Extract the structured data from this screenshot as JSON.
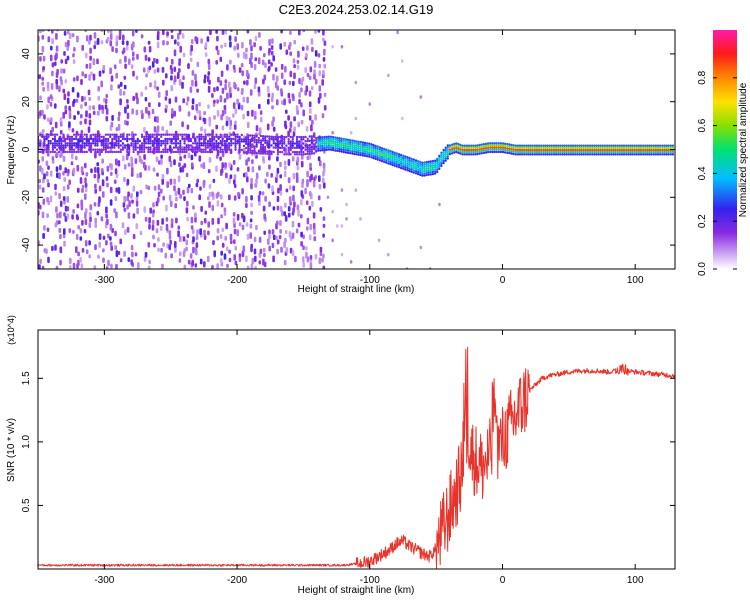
{
  "title": "C2E3.2024.253.02.14.G19",
  "colors": {
    "snr_line": "#e8332a",
    "axis": "#000000"
  },
  "chart_data": [
    {
      "type": "heatmap",
      "xlabel": "Height of straight line (km)",
      "ylabel": "Frequency (Hz)",
      "xlim": [
        -350,
        130
      ],
      "ylim": [
        -50,
        50
      ],
      "xticks": [
        -300,
        -200,
        -100,
        0,
        100
      ],
      "yticks": [
        -40,
        -20,
        0,
        20,
        40
      ],
      "colorbar": {
        "label": "Normalized spectral amplitude",
        "range": [
          0,
          1
        ],
        "ticks": [
          "0.0",
          "0.2",
          "0.4",
          "0.6",
          "0.8"
        ],
        "tick_values": [
          0.0,
          0.2,
          0.4,
          0.6,
          0.8
        ],
        "colormap": "rainbow (white-violet-blue-cyan-green-yellow-red-magenta)"
      },
      "ridge": [
        [
          -350,
          3
        ],
        [
          -300,
          3
        ],
        [
          -250,
          3
        ],
        [
          -200,
          3
        ],
        [
          -170,
          2
        ],
        [
          -150,
          2
        ],
        [
          -130,
          3
        ],
        [
          -120,
          2
        ],
        [
          -110,
          1
        ],
        [
          -100,
          0
        ],
        [
          -90,
          -2
        ],
        [
          -80,
          -4
        ],
        [
          -70,
          -6
        ],
        [
          -60,
          -8
        ],
        [
          -50,
          -7
        ],
        [
          -45,
          -3
        ],
        [
          -40,
          0
        ],
        [
          -35,
          1
        ],
        [
          -30,
          0
        ],
        [
          -20,
          0
        ],
        [
          -10,
          1
        ],
        [
          0,
          1
        ],
        [
          10,
          0
        ],
        [
          40,
          0
        ],
        [
          80,
          0
        ],
        [
          130,
          0
        ]
      ]
    },
    {
      "type": "line",
      "xlabel": "Height of straight line (km)",
      "ylabel": "SNR (10 * v/v)",
      "y_multiplier": "(x10^4)",
      "xlim": [
        -350,
        130
      ],
      "ylim": [
        0,
        1.88
      ],
      "xticks": [
        -300,
        -200,
        -100,
        0,
        100
      ],
      "yticks": [
        0.5,
        1.0,
        1.5
      ],
      "series": [
        {
          "x": [
            -350,
            -300,
            -250,
            -200,
            -150,
            -120,
            -110,
            -100,
            -95,
            -90,
            -85,
            -80,
            -75,
            -70,
            -65,
            -60,
            -55,
            -50,
            -45,
            -40,
            -35,
            -30,
            -25,
            -20,
            -15,
            -10,
            -5,
            0,
            5,
            10,
            15,
            20,
            25,
            30,
            35,
            40,
            50,
            60,
            70,
            80,
            90,
            100,
            110,
            120,
            130
          ],
          "y": [
            0.03,
            0.03,
            0.03,
            0.03,
            0.03,
            0.03,
            0.04,
            0.06,
            0.09,
            0.12,
            0.15,
            0.2,
            0.22,
            0.18,
            0.15,
            0.12,
            0.1,
            0.16,
            0.3,
            0.45,
            0.6,
            0.78,
            0.95,
            0.85,
            0.8,
            0.88,
            0.95,
            1.0,
            1.1,
            1.2,
            1.3,
            1.4,
            1.45,
            1.5,
            1.52,
            1.53,
            1.55,
            1.56,
            1.56,
            1.55,
            1.56,
            1.55,
            1.54,
            1.53,
            1.52
          ]
        }
      ]
    }
  ]
}
